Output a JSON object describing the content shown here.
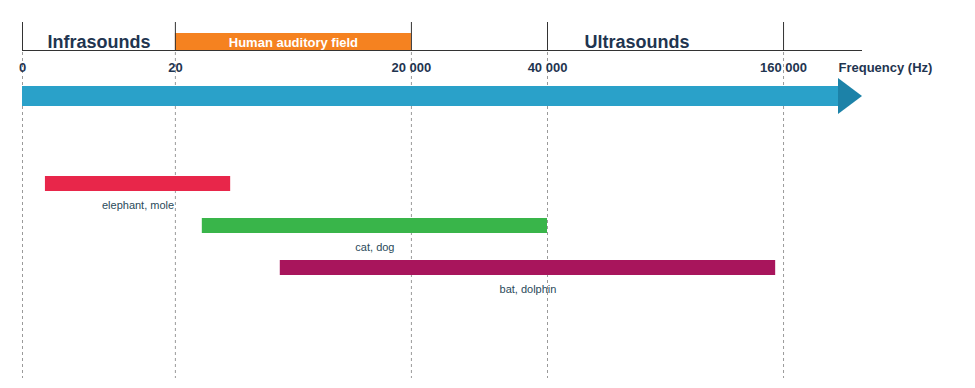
{
  "chart_data": {
    "type": "range_bar",
    "orientation": "horizontal",
    "x_label": "Frequency (Hz)",
    "xlim": [
      0,
      200000
    ],
    "xticks": [
      0,
      20,
      {
        "value": 20000,
        "label": "20 000"
      },
      {
        "value": 40000,
        "label": "40 000"
      },
      {
        "value": 160000,
        "label": "160 000"
      }
    ],
    "grid": true,
    "bands": [
      {
        "label": "Infrasounds",
        "range": [
          0,
          20
        ]
      },
      {
        "label": "Human auditory field",
        "range": [
          20,
          20000
        ],
        "color": "#f58220"
      },
      {
        "label": "Ultrasounds",
        "range": [
          20000,
          200000
        ]
      }
    ],
    "categories": [
      "elephant, mole",
      "cat, dog",
      "bat, dolphin"
    ],
    "values": [
      [
        3,
        4700
      ],
      [
        2300,
        40000
      ],
      [
        8900,
        156000
      ]
    ],
    "colors": [
      "#e8264a",
      "#39b54a",
      "#a8155c"
    ]
  }
}
